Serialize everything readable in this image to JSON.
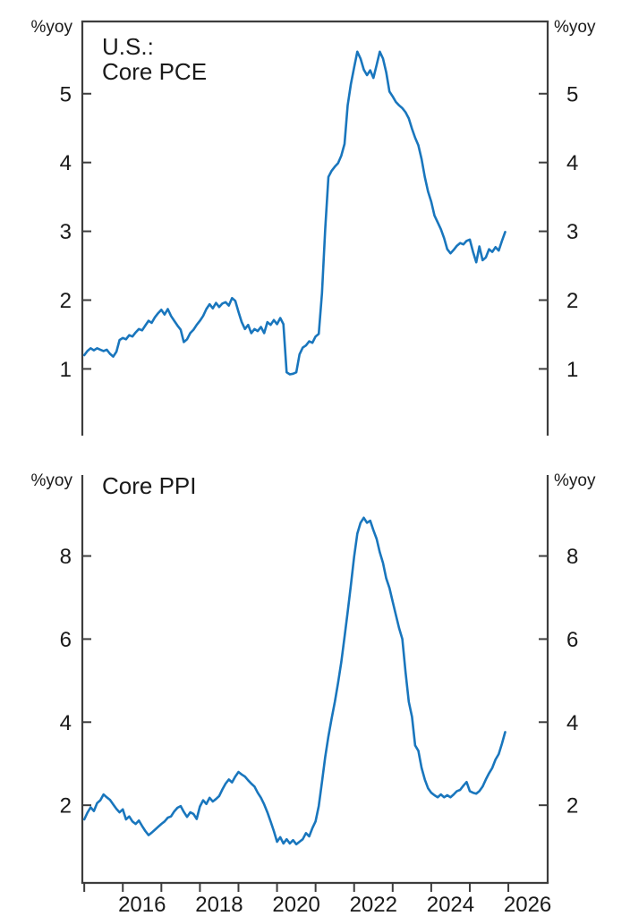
{
  "colors": {
    "line": "#1976bd",
    "axis": "#3d3d3d",
    "text": "#1a1a1a",
    "background": "#ffffff"
  },
  "chart_data": [
    {
      "type": "line",
      "title_lines": [
        "U.S.:",
        "Core PCE"
      ],
      "unit_left": "%yoy",
      "unit_right": "%yoy",
      "y_ticks": [
        1,
        2,
        3,
        4,
        5
      ],
      "ylim": [
        0.03,
        6.05
      ],
      "xlim": [
        2014.95,
        2027.02
      ],
      "grid": false,
      "legend": "none",
      "series": [
        {
          "name": "U.S. Core PCE inflation, % year-over-year",
          "x_start": 2015.0,
          "freq": "monthly",
          "values": [
            1.2,
            1.26,
            1.3,
            1.27,
            1.3,
            1.28,
            1.26,
            1.28,
            1.22,
            1.18,
            1.25,
            1.42,
            1.45,
            1.43,
            1.49,
            1.47,
            1.53,
            1.58,
            1.56,
            1.63,
            1.7,
            1.67,
            1.75,
            1.81,
            1.86,
            1.79,
            1.87,
            1.77,
            1.7,
            1.63,
            1.57,
            1.39,
            1.43,
            1.52,
            1.57,
            1.64,
            1.7,
            1.77,
            1.87,
            1.94,
            1.88,
            1.96,
            1.9,
            1.95,
            1.97,
            1.92,
            2.03,
            1.99,
            1.83,
            1.68,
            1.58,
            1.64,
            1.52,
            1.58,
            1.55,
            1.61,
            1.52,
            1.68,
            1.64,
            1.71,
            1.65,
            1.74,
            1.65,
            0.95,
            0.92,
            0.93,
            0.95,
            1.21,
            1.31,
            1.34,
            1.4,
            1.38,
            1.47,
            1.51,
            2.1,
            3.03,
            3.79,
            3.88,
            3.94,
            3.99,
            4.1,
            4.27,
            4.83,
            5.14,
            5.38,
            5.61,
            5.51,
            5.35,
            5.27,
            5.34,
            5.23,
            5.42,
            5.61,
            5.51,
            5.31,
            5.03,
            4.96,
            4.88,
            4.83,
            4.79,
            4.73,
            4.64,
            4.49,
            4.36,
            4.25,
            4.05,
            3.79,
            3.58,
            3.43,
            3.23,
            3.13,
            3.03,
            2.9,
            2.74,
            2.68,
            2.73,
            2.79,
            2.83,
            2.81,
            2.86,
            2.88,
            2.7,
            2.55,
            2.78,
            2.58,
            2.62,
            2.74,
            2.7,
            2.77,
            2.72,
            2.86,
            2.99
          ]
        }
      ]
    },
    {
      "type": "line",
      "title_lines": [
        "Core PPI"
      ],
      "unit_left": "%yoy",
      "unit_right": "%yoy",
      "y_ticks": [
        2,
        4,
        6,
        8
      ],
      "ylim": [
        0.13,
        9.95
      ],
      "xlim": [
        2014.95,
        2027.02
      ],
      "x_ticks": [
        2015,
        2016,
        2017,
        2018,
        2019,
        2020,
        2021,
        2022,
        2023,
        2024,
        2025,
        2026
      ],
      "x_tick_labels": [
        2016,
        2018,
        2020,
        2022,
        2024,
        2026
      ],
      "grid": false,
      "legend": "none",
      "series": [
        {
          "name": "U.S. Core PPI inflation, % year-over-year",
          "x_start": 2015.0,
          "freq": "monthly",
          "values": [
            1.66,
            1.82,
            1.95,
            1.86,
            2.05,
            2.12,
            2.26,
            2.19,
            2.13,
            2.02,
            1.91,
            1.83,
            1.9,
            1.66,
            1.73,
            1.61,
            1.55,
            1.63,
            1.5,
            1.38,
            1.28,
            1.34,
            1.41,
            1.48,
            1.55,
            1.61,
            1.7,
            1.73,
            1.85,
            1.94,
            1.98,
            1.84,
            1.72,
            1.83,
            1.79,
            1.67,
            1.97,
            2.12,
            2.03,
            2.18,
            2.09,
            2.15,
            2.22,
            2.38,
            2.52,
            2.62,
            2.55,
            2.69,
            2.8,
            2.74,
            2.69,
            2.6,
            2.52,
            2.45,
            2.3,
            2.18,
            2.02,
            1.83,
            1.61,
            1.38,
            1.12,
            1.23,
            1.08,
            1.18,
            1.08,
            1.16,
            1.06,
            1.12,
            1.18,
            1.33,
            1.25,
            1.45,
            1.61,
            1.98,
            2.56,
            3.16,
            3.66,
            4.09,
            4.49,
            4.95,
            5.45,
            6.05,
            6.65,
            7.3,
            7.98,
            8.54,
            8.8,
            8.92,
            8.8,
            8.85,
            8.62,
            8.41,
            8.09,
            7.83,
            7.46,
            7.23,
            6.9,
            6.58,
            6.26,
            6.0,
            5.2,
            4.49,
            4.13,
            3.44,
            3.31,
            2.9,
            2.62,
            2.41,
            2.3,
            2.24,
            2.19,
            2.26,
            2.19,
            2.24,
            2.19,
            2.26,
            2.34,
            2.37,
            2.47,
            2.56,
            2.34,
            2.3,
            2.28,
            2.34,
            2.45,
            2.62,
            2.77,
            2.9,
            3.1,
            3.23,
            3.48,
            3.76
          ]
        }
      ]
    }
  ]
}
